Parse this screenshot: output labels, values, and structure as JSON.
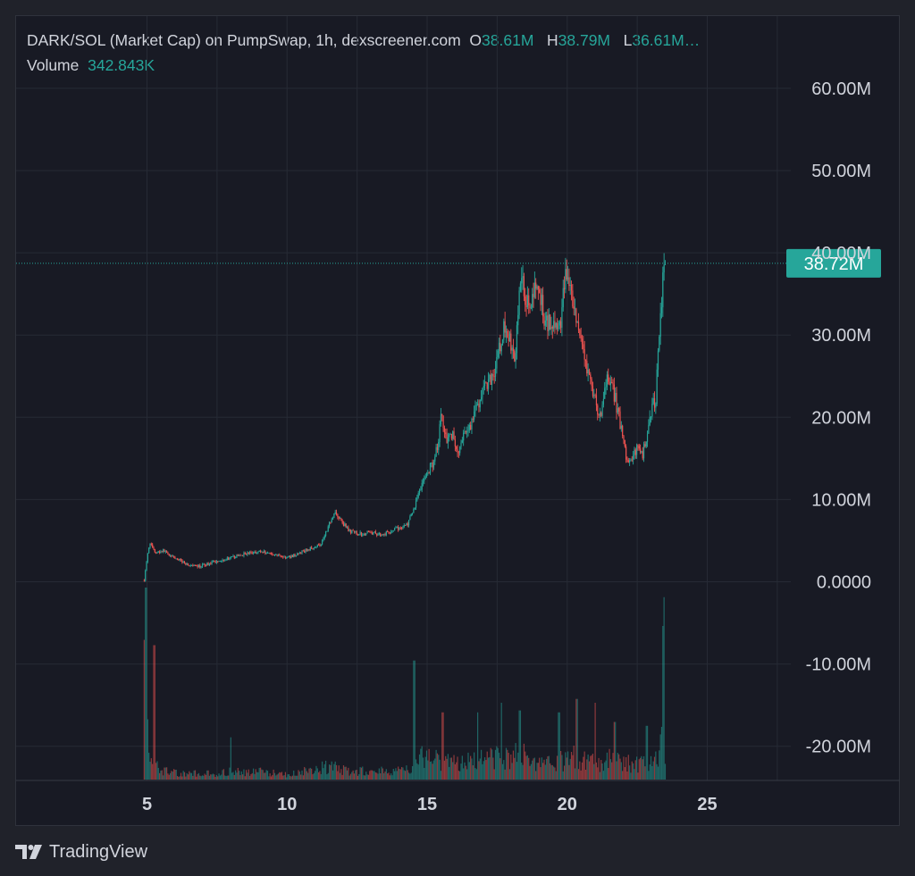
{
  "header": {
    "title": "DARK/SOL (Market Cap) on PumpSwap, 1h, dexscreener.com",
    "open_label": "O",
    "open_value": "38.61M",
    "high_label": "H",
    "high_value": "38.79M",
    "low_label": "L",
    "low_value": "36.61M…",
    "volume_label": "Volume",
    "volume_value": "342.843K"
  },
  "colors": {
    "up": "#26a69a",
    "down": "#ef5350",
    "bg": "#181a24",
    "grid": "#262a35",
    "text": "#d1d4dc"
  },
  "branding": {
    "name": "TradingView",
    "icon": "tradingview-logo-icon"
  },
  "chart_data": {
    "type": "candlestick",
    "price_axis": {
      "ticks": [
        {
          "value": 60,
          "label": "60.00M"
        },
        {
          "value": 50,
          "label": "50.00M"
        },
        {
          "value": 40,
          "label": "40.00M"
        },
        {
          "value": 30,
          "label": "30.00M"
        },
        {
          "value": 20,
          "label": "20.00M"
        },
        {
          "value": 10,
          "label": "10.00M"
        },
        {
          "value": 0,
          "label": "0.0000"
        },
        {
          "value": -10,
          "label": "-10.00M"
        },
        {
          "value": -20,
          "label": "-20.00M"
        }
      ],
      "unit": "M"
    },
    "time_axis": {
      "ticks": [
        {
          "value": 5,
          "label": "5"
        },
        {
          "value": 10,
          "label": "10"
        },
        {
          "value": 15,
          "label": "15"
        },
        {
          "value": 20,
          "label": "20"
        },
        {
          "value": 25,
          "label": "25"
        }
      ]
    },
    "last_price": {
      "value": 38.72,
      "label": "38.72M"
    },
    "series_path": [
      [
        4.9,
        0.2
      ],
      [
        5.0,
        3.0
      ],
      [
        5.1,
        4.8
      ],
      [
        5.3,
        3.5
      ],
      [
        5.6,
        3.8
      ],
      [
        5.9,
        3.0
      ],
      [
        6.2,
        2.6
      ],
      [
        6.5,
        2.0
      ],
      [
        6.8,
        1.8
      ],
      [
        7.2,
        2.2
      ],
      [
        7.6,
        2.6
      ],
      [
        8.0,
        2.9
      ],
      [
        8.5,
        3.4
      ],
      [
        9.0,
        3.7
      ],
      [
        9.5,
        3.4
      ],
      [
        10.0,
        2.9
      ],
      [
        10.4,
        3.4
      ],
      [
        10.8,
        4.0
      ],
      [
        11.2,
        4.6
      ],
      [
        11.5,
        7.0
      ],
      [
        11.7,
        8.5
      ],
      [
        11.9,
        7.5
      ],
      [
        12.2,
        6.2
      ],
      [
        12.6,
        5.8
      ],
      [
        13.0,
        6.0
      ],
      [
        13.4,
        5.7
      ],
      [
        13.7,
        6.2
      ],
      [
        14.0,
        6.5
      ],
      [
        14.3,
        7.0
      ],
      [
        14.5,
        8.5
      ],
      [
        14.7,
        11.0
      ],
      [
        14.9,
        12.5
      ],
      [
        15.2,
        14.5
      ],
      [
        15.4,
        17.0
      ],
      [
        15.5,
        20.5
      ],
      [
        15.7,
        17.5
      ],
      [
        15.9,
        18.0
      ],
      [
        16.1,
        15.5
      ],
      [
        16.3,
        17.5
      ],
      [
        16.6,
        19.5
      ],
      [
        16.9,
        22.5
      ],
      [
        17.1,
        24.0
      ],
      [
        17.4,
        25.5
      ],
      [
        17.6,
        28.5
      ],
      [
        17.8,
        31.5
      ],
      [
        18.0,
        28.5
      ],
      [
        18.1,
        27.0
      ],
      [
        18.25,
        31.5
      ],
      [
        18.35,
        38.5
      ],
      [
        18.5,
        35.0
      ],
      [
        18.7,
        33.0
      ],
      [
        18.9,
        36.0
      ],
      [
        19.1,
        34.0
      ],
      [
        19.2,
        31.5
      ],
      [
        19.45,
        32.0
      ],
      [
        19.7,
        30.0
      ],
      [
        19.85,
        34.5
      ],
      [
        19.95,
        37.5
      ],
      [
        20.1,
        35.0
      ],
      [
        20.4,
        30.0
      ],
      [
        20.6,
        27.0
      ],
      [
        20.8,
        24.5
      ],
      [
        21.0,
        22.0
      ],
      [
        21.2,
        19.5
      ],
      [
        21.3,
        23.0
      ],
      [
        21.5,
        25.0
      ],
      [
        21.7,
        22.5
      ],
      [
        21.9,
        19.0
      ],
      [
        22.0,
        17.5
      ],
      [
        22.1,
        15.0
      ],
      [
        22.3,
        14.5
      ],
      [
        22.5,
        16.5
      ],
      [
        22.7,
        15.5
      ],
      [
        22.9,
        19.0
      ],
      [
        23.05,
        22.0
      ],
      [
        23.15,
        21.5
      ],
      [
        23.2,
        25.0
      ],
      [
        23.3,
        30.0
      ],
      [
        23.38,
        35.0
      ],
      [
        23.43,
        39.5
      ],
      [
        23.5,
        38.7
      ]
    ],
    "volume_path": [
      [
        4.95,
        0.62
      ],
      [
        5.05,
        0.28
      ],
      [
        5.15,
        0.14
      ],
      [
        5.3,
        0.1
      ],
      [
        5.6,
        0.05
      ],
      [
        6.0,
        0.04
      ],
      [
        6.5,
        0.035
      ],
      [
        7.0,
        0.04
      ],
      [
        7.5,
        0.035
      ],
      [
        8.0,
        0.05
      ],
      [
        8.5,
        0.04
      ],
      [
        9.0,
        0.05
      ],
      [
        9.5,
        0.04
      ],
      [
        10.0,
        0.03
      ],
      [
        10.5,
        0.045
      ],
      [
        11.0,
        0.06
      ],
      [
        11.5,
        0.08
      ],
      [
        12.0,
        0.06
      ],
      [
        12.5,
        0.05
      ],
      [
        13.0,
        0.05
      ],
      [
        13.5,
        0.05
      ],
      [
        14.0,
        0.05
      ],
      [
        14.4,
        0.06
      ],
      [
        14.6,
        0.12
      ],
      [
        15.0,
        0.14
      ],
      [
        15.5,
        0.12
      ],
      [
        16.0,
        0.1
      ],
      [
        16.5,
        0.11
      ],
      [
        17.0,
        0.12
      ],
      [
        17.5,
        0.13
      ],
      [
        18.0,
        0.12
      ],
      [
        18.3,
        0.18
      ],
      [
        18.6,
        0.13
      ],
      [
        19.0,
        0.1
      ],
      [
        19.5,
        0.1
      ],
      [
        20.0,
        0.12
      ],
      [
        20.3,
        0.14
      ],
      [
        20.6,
        0.12
      ],
      [
        21.0,
        0.1
      ],
      [
        21.5,
        0.12
      ],
      [
        22.0,
        0.1
      ],
      [
        22.5,
        0.09
      ],
      [
        23.0,
        0.1
      ],
      [
        23.3,
        0.12
      ],
      [
        23.45,
        0.5
      ],
      [
        23.5,
        0.15
      ]
    ],
    "volume_spikes": [
      [
        4.95,
        1.0
      ],
      [
        5.25,
        0.7
      ],
      [
        8.0,
        0.22
      ],
      [
        14.55,
        0.62
      ],
      [
        15.55,
        0.35
      ],
      [
        16.8,
        0.35
      ],
      [
        17.65,
        0.4
      ],
      [
        18.3,
        0.36
      ],
      [
        19.7,
        0.35
      ],
      [
        20.35,
        0.42
      ],
      [
        21.0,
        0.4
      ],
      [
        21.7,
        0.3
      ],
      [
        22.85,
        0.28
      ],
      [
        23.43,
        0.8
      ],
      [
        23.46,
        0.95
      ]
    ]
  }
}
